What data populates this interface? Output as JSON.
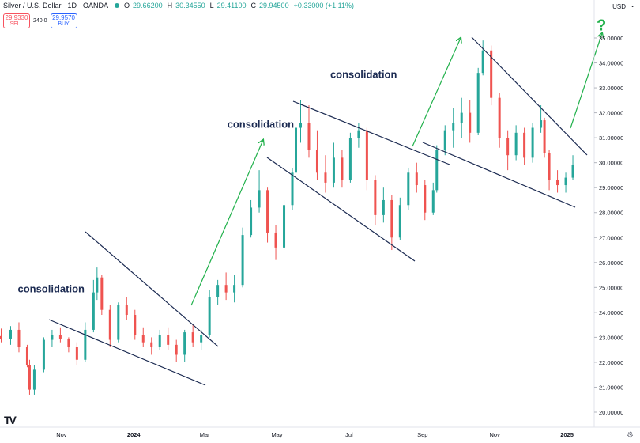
{
  "header": {
    "title": "Silver / U.S. Dollar · 1D · OANDA",
    "ohlc": [
      {
        "k": "O",
        "v": "29.66200"
      },
      {
        "k": "H",
        "v": "30.34550"
      },
      {
        "k": "L",
        "v": "29.41100"
      },
      {
        "k": "C",
        "v": "29.94500"
      },
      {
        "k": "",
        "v": "+0.33000 (+1.11%)"
      }
    ]
  },
  "trade": {
    "sell_price": "29.9330",
    "sell_label": "SELL",
    "spread": "240.0",
    "buy_price": "29.9570",
    "buy_label": "BUY"
  },
  "currency": "USD",
  "logo": "TV",
  "chart_data": {
    "type": "candlestick",
    "title": "Silver / U.S. Dollar · 1D · OANDA",
    "y_ticks": [
      "20.00000",
      "21.00000",
      "22.00000",
      "23.00000",
      "24.00000",
      "25.00000",
      "26.00000",
      "27.00000",
      "28.00000",
      "29.00000",
      "30.00000",
      "31.00000",
      "32.00000",
      "33.00000",
      "34.00000",
      "35.00000"
    ],
    "ylim": [
      19.6,
      36.0
    ],
    "x_ticks": [
      {
        "label": "Nov",
        "date": "2023-11-01"
      },
      {
        "label": "2024",
        "date": "2024-01-01"
      },
      {
        "label": "Mar",
        "date": "2024-03-01"
      },
      {
        "label": "May",
        "date": "2024-05-01"
      },
      {
        "label": "Jul",
        "date": "2024-07-01"
      },
      {
        "label": "Sep",
        "date": "2024-09-01"
      },
      {
        "label": "Nov",
        "date": "2024-11-01"
      },
      {
        "label": "2025",
        "date": "2025-01-01"
      }
    ],
    "xlim": [
      "2023-09-10",
      "2025-01-24"
    ],
    "up_color": "#26a69a",
    "down_color": "#ef5350",
    "candles": [
      [
        "2023-09-11",
        23.05,
        23.35,
        22.8,
        22.95
      ],
      [
        "2023-09-19",
        22.95,
        23.45,
        22.7,
        23.3
      ],
      [
        "2023-09-26",
        23.3,
        23.6,
        22.4,
        22.6
      ],
      [
        "2023-10-03",
        22.6,
        22.7,
        21.8,
        21.9
      ],
      [
        "2023-10-05",
        21.9,
        22.1,
        20.7,
        20.9
      ],
      [
        "2023-10-09",
        20.9,
        21.9,
        20.7,
        21.7
      ],
      [
        "2023-10-17",
        21.7,
        23.0,
        21.6,
        22.9
      ],
      [
        "2023-10-24",
        22.9,
        23.3,
        22.6,
        23.1
      ],
      [
        "2023-10-31",
        23.1,
        23.4,
        22.8,
        22.95
      ],
      [
        "2023-11-07",
        22.95,
        23.0,
        22.4,
        22.6
      ],
      [
        "2023-11-14",
        22.6,
        22.8,
        21.9,
        22.1
      ],
      [
        "2023-11-21",
        22.1,
        23.6,
        22.0,
        23.3
      ],
      [
        "2023-11-28",
        23.3,
        25.3,
        23.2,
        24.8
      ],
      [
        "2023-12-01",
        24.8,
        25.8,
        24.5,
        25.4
      ],
      [
        "2023-12-05",
        25.4,
        25.5,
        23.9,
        24.1
      ],
      [
        "2023-12-12",
        24.1,
        24.3,
        22.6,
        22.9
      ],
      [
        "2023-12-19",
        22.9,
        24.4,
        22.8,
        24.3
      ],
      [
        "2023-12-26",
        24.3,
        24.6,
        23.7,
        23.9
      ],
      [
        "2024-01-02",
        23.9,
        24.1,
        22.9,
        23.1
      ],
      [
        "2024-01-09",
        23.1,
        23.4,
        22.6,
        22.8
      ],
      [
        "2024-01-16",
        22.8,
        23.0,
        22.3,
        22.6
      ],
      [
        "2024-01-23",
        22.6,
        23.3,
        22.5,
        23.1
      ],
      [
        "2024-01-30",
        23.1,
        23.4,
        22.5,
        22.7
      ],
      [
        "2024-02-06",
        22.7,
        22.9,
        22.0,
        22.3
      ],
      [
        "2024-02-13",
        22.3,
        23.3,
        22.0,
        23.2
      ],
      [
        "2024-02-20",
        23.2,
        23.5,
        22.6,
        22.8
      ],
      [
        "2024-02-27",
        22.8,
        23.3,
        22.5,
        23.1
      ],
      [
        "2024-03-05",
        23.1,
        24.9,
        23.0,
        24.6
      ],
      [
        "2024-03-12",
        24.6,
        25.3,
        24.3,
        25.1
      ],
      [
        "2024-03-19",
        25.1,
        25.6,
        24.5,
        24.8
      ],
      [
        "2024-03-26",
        24.8,
        25.5,
        24.4,
        25.1
      ],
      [
        "2024-04-02",
        25.1,
        27.4,
        25.0,
        27.1
      ],
      [
        "2024-04-09",
        27.1,
        28.5,
        27.0,
        28.2
      ],
      [
        "2024-04-16",
        28.2,
        29.7,
        28.0,
        28.9
      ],
      [
        "2024-04-23",
        28.9,
        29.0,
        26.8,
        27.2
      ],
      [
        "2024-04-30",
        27.2,
        27.5,
        26.1,
        26.6
      ],
      [
        "2024-05-07",
        26.6,
        28.5,
        26.5,
        28.3
      ],
      [
        "2024-05-14",
        28.3,
        29.8,
        28.1,
        29.6
      ],
      [
        "2024-05-17",
        29.6,
        31.6,
        29.5,
        31.4
      ],
      [
        "2024-05-21",
        31.4,
        32.5,
        30.8,
        31.6
      ],
      [
        "2024-05-28",
        31.6,
        32.3,
        30.2,
        30.5
      ],
      [
        "2024-06-04",
        30.5,
        31.3,
        29.3,
        29.6
      ],
      [
        "2024-06-11",
        29.6,
        30.3,
        28.8,
        29.2
      ],
      [
        "2024-06-18",
        29.2,
        30.8,
        29.0,
        30.2
      ],
      [
        "2024-06-25",
        30.2,
        30.5,
        29.0,
        29.3
      ],
      [
        "2024-07-02",
        29.3,
        31.2,
        29.2,
        31.0
      ],
      [
        "2024-07-09",
        31.0,
        31.6,
        30.6,
        31.3
      ],
      [
        "2024-07-16",
        31.3,
        31.4,
        28.9,
        29.3
      ],
      [
        "2024-07-23",
        29.3,
        29.5,
        27.5,
        27.9
      ],
      [
        "2024-07-30",
        27.9,
        29.0,
        27.6,
        28.5
      ],
      [
        "2024-08-06",
        28.5,
        28.7,
        26.5,
        27.0
      ],
      [
        "2024-08-13",
        27.0,
        28.6,
        26.9,
        28.3
      ],
      [
        "2024-08-20",
        28.3,
        29.8,
        28.1,
        29.6
      ],
      [
        "2024-08-27",
        29.6,
        30.0,
        28.8,
        29.1
      ],
      [
        "2024-09-03",
        29.1,
        29.3,
        27.7,
        28.0
      ],
      [
        "2024-09-10",
        28.0,
        29.2,
        27.9,
        28.9
      ],
      [
        "2024-09-13",
        28.9,
        30.7,
        28.8,
        30.5
      ],
      [
        "2024-09-20",
        30.5,
        31.5,
        30.3,
        31.3
      ],
      [
        "2024-09-27",
        31.3,
        32.2,
        30.6,
        31.6
      ],
      [
        "2024-10-04",
        31.6,
        32.6,
        31.0,
        32.0
      ],
      [
        "2024-10-11",
        32.0,
        32.5,
        30.8,
        31.2
      ],
      [
        "2024-10-18",
        31.2,
        33.8,
        31.1,
        33.6
      ],
      [
        "2024-10-22",
        33.6,
        34.9,
        33.5,
        34.5
      ],
      [
        "2024-10-29",
        34.5,
        34.7,
        32.3,
        32.6
      ],
      [
        "2024-11-05",
        32.6,
        32.8,
        30.6,
        31.0
      ],
      [
        "2024-11-12",
        31.0,
        31.3,
        29.7,
        30.3
      ],
      [
        "2024-11-19",
        30.3,
        31.5,
        30.1,
        31.2
      ],
      [
        "2024-11-26",
        31.2,
        31.4,
        29.9,
        30.2
      ],
      [
        "2024-12-03",
        30.2,
        31.6,
        30.0,
        31.4
      ],
      [
        "2024-12-10",
        31.4,
        32.3,
        31.2,
        31.7
      ],
      [
        "2024-12-13",
        31.7,
        31.8,
        30.2,
        30.4
      ],
      [
        "2024-12-17",
        30.4,
        30.5,
        28.9,
        29.3
      ],
      [
        "2024-12-24",
        29.3,
        29.7,
        28.8,
        29.1
      ],
      [
        "2024-12-31",
        29.1,
        29.6,
        28.8,
        29.4
      ],
      [
        "2025-01-06",
        29.4,
        30.3,
        29.3,
        29.9
      ]
    ],
    "annotations": [
      {
        "text": "consolidation",
        "x": "2023-09-25",
        "y": 24.8
      },
      {
        "text": "consolidation",
        "x": "2024-03-20",
        "y": 31.4
      },
      {
        "text": "consolidation",
        "x": "2024-06-15",
        "y": 33.4
      },
      {
        "text": "?",
        "x": "2025-01-26",
        "y": 35.3
      }
    ]
  }
}
